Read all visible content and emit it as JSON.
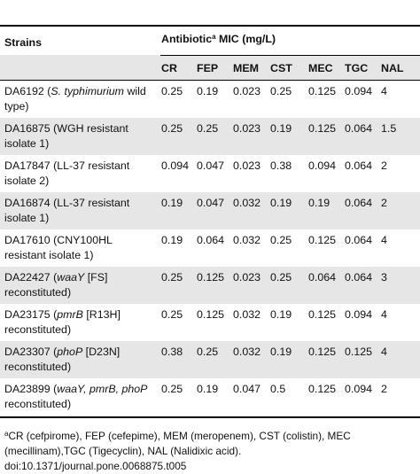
{
  "header": {
    "strains_label": "Strains",
    "mic_label_prefix": "Antibiotic",
    "mic_label_sup": "a",
    "mic_label_suffix": " MIC (mg/L)",
    "columns": [
      "CR",
      "FEP",
      "MEM",
      "CST",
      "MEC",
      "TGC",
      "NAL"
    ]
  },
  "rows": [
    {
      "id": "DA6192",
      "desc_a": "(",
      "desc_i": "S. typhimurium",
      "desc_b": " wild",
      "line2": "type)",
      "values": [
        "0.25",
        "0.19",
        "0.023",
        "0.25",
        "0.125",
        "0.094",
        "4"
      ]
    },
    {
      "id": "DA16875",
      "desc_a": "(WGH resistant",
      "desc_i": "",
      "desc_b": "",
      "line2": "isolate 1)",
      "values": [
        "0.25",
        "0.25",
        "0.023",
        "0.19",
        "0.125",
        "0.064",
        "1.5"
      ]
    },
    {
      "id": "DA17847",
      "desc_a": "(LL-37 resistant",
      "desc_i": "",
      "desc_b": "",
      "line2": "isolate 2)",
      "values": [
        "0.094",
        "0.047",
        "0.023",
        "0.38",
        "0.094",
        "0.064",
        "2"
      ]
    },
    {
      "id": "DA16874",
      "desc_a": "(LL-37 resistant",
      "desc_i": "",
      "desc_b": "",
      "line2": "isolate 1)",
      "values": [
        "0.19",
        "0.047",
        "0.032",
        "0.19",
        "0.19",
        "0.064",
        "2"
      ]
    },
    {
      "id": "DA17610",
      "desc_a": "(CNY100HL",
      "desc_i": "",
      "desc_b": "",
      "line2": "resistant isolate 1)",
      "values": [
        "0.19",
        "0.064",
        "0.032",
        "0.25",
        "0.125",
        "0.064",
        "4"
      ]
    },
    {
      "id": "DA22427",
      "desc_a": "(",
      "desc_i": "waaY",
      "desc_b": " [FS]",
      "line2": "reconstituted)",
      "values": [
        "0.25",
        "0.125",
        "0.023",
        "0.25",
        "0.064",
        "0.064",
        "3"
      ]
    },
    {
      "id": "DA23175",
      "desc_a": "(",
      "desc_i": "pmrB",
      "desc_b": " [R13H]",
      "line2": "reconstituted)",
      "values": [
        "0.25",
        "0.125",
        "0.032",
        "0.19",
        "0.125",
        "0.094",
        "4"
      ]
    },
    {
      "id": "DA23307",
      "desc_a": "(",
      "desc_i": "phoP",
      "desc_b": " [D23N]",
      "line2": "reconstituted)",
      "values": [
        "0.38",
        "0.25",
        "0.032",
        "0.19",
        "0.125",
        "0.125",
        "4"
      ]
    },
    {
      "id": "DA23899",
      "desc_a": "(",
      "desc_i": "waaY, pmrB, phoP",
      "desc_b": "",
      "line2": "reconstituted)",
      "values": [
        "0.25",
        "0.19",
        "0.047",
        "0.5",
        "0.125",
        "0.094",
        "2"
      ]
    }
  ],
  "footnote": {
    "sup": "a",
    "line1": "CR (cefpirome), FEP (cefepime), MEM (meropenem), CST (colistin), MEC",
    "line2": "(mecillinam),TGC (Tigecyclin), NAL (Nalidixic acid).",
    "doi": "doi:10.1371/journal.pone.0068875.t005"
  },
  "colors": {
    "shade": "#e6e6e6",
    "rule": "#000000",
    "text": "#111111"
  }
}
